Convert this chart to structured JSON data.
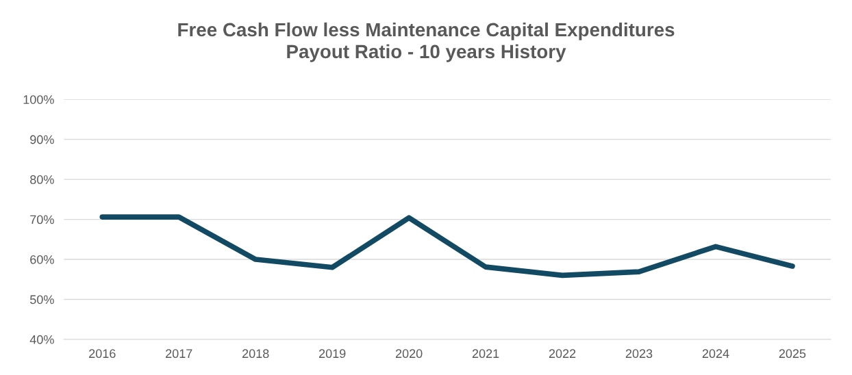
{
  "chart_data": {
    "type": "line",
    "title": "Free Cash Flow less Maintenance Capital Expenditures\nPayout Ratio - 10 years History",
    "categories": [
      "2016",
      "2017",
      "2018",
      "2019",
      "2020",
      "2021",
      "2022",
      "2023",
      "2024",
      "2025"
    ],
    "series": [
      {
        "color": "#134a63",
        "values": [
          70.6,
          70.6,
          60,
          58,
          70.4,
          58.1,
          56,
          56.9,
          63.2,
          58.3
        ]
      }
    ],
    "ylim": [
      40,
      100
    ],
    "yticks": [
      {
        "value": 40,
        "label": "40%"
      },
      {
        "value": 50,
        "label": "50%"
      },
      {
        "value": 60,
        "label": "60%"
      },
      {
        "value": 70,
        "label": "70%"
      },
      {
        "value": 80,
        "label": "80%"
      },
      {
        "value": 90,
        "label": "90%"
      },
      {
        "value": 100,
        "label": "100%"
      }
    ],
    "grid": "y",
    "marker": "none",
    "line_style": "solid"
  }
}
